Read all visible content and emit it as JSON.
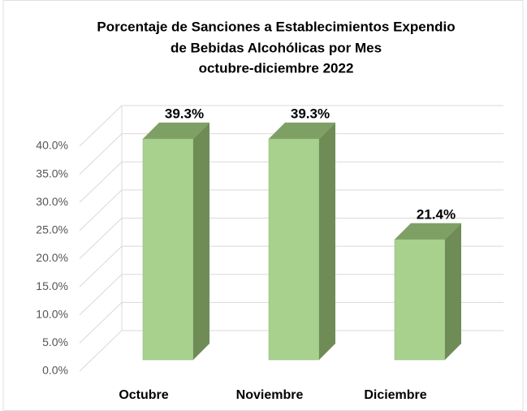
{
  "chart_data": {
    "type": "bar3d",
    "title": [
      "Porcentaje de Sanciones a Establecimientos Expendio",
      "de Bebidas Alcohólicas por Mes",
      "octubre-diciembre 2022"
    ],
    "categories": [
      "Octubre",
      "Noviembre",
      "Diciembre"
    ],
    "values": [
      39.3,
      39.3,
      21.4
    ],
    "value_labels": [
      "39.3%",
      "39.3%",
      "21.4%"
    ],
    "color": "#a9d18e",
    "ylim": [
      0,
      40
    ],
    "yticks": [
      {
        "value": 0,
        "label": "0.0%"
      },
      {
        "value": 5,
        "label": "5.0%"
      },
      {
        "value": 10,
        "label": "10.0%"
      },
      {
        "value": 15,
        "label": "15.0%"
      },
      {
        "value": 20,
        "label": "20.0%"
      },
      {
        "value": 25,
        "label": "25.0%"
      },
      {
        "value": 30,
        "label": "30.0%"
      },
      {
        "value": 35,
        "label": "35.0%"
      },
      {
        "value": 40,
        "label": "40.0%"
      }
    ],
    "grid": true
  }
}
